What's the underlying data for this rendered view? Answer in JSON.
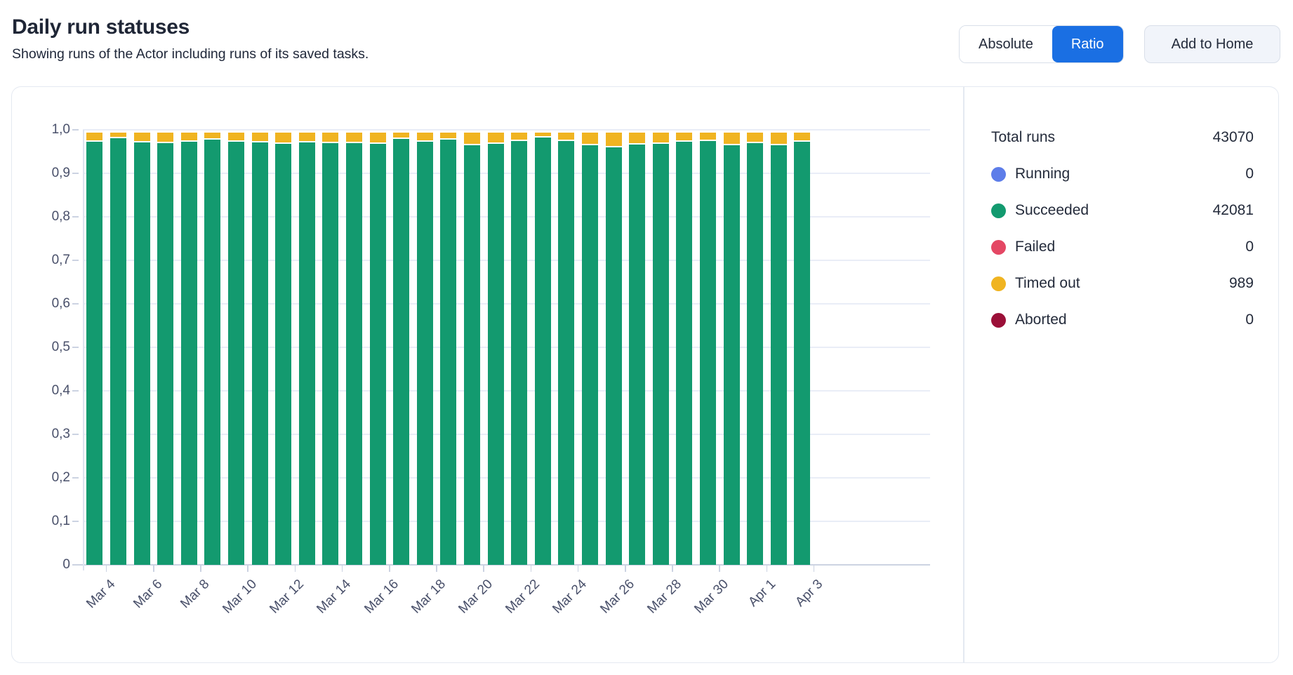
{
  "header": {
    "title": "Daily run statuses",
    "subtitle": "Showing runs of the Actor including runs of its saved tasks.",
    "controls": {
      "absolute_label": "Absolute",
      "ratio_label": "Ratio",
      "active_view": "Ratio",
      "add_to_home_label": "Add to Home",
      "active_color": "#1a6fe3"
    }
  },
  "legend": {
    "total_label": "Total runs",
    "total_value": "43070",
    "items": [
      {
        "label": "Running",
        "value": "0",
        "color": "#5d7de9"
      },
      {
        "label": "Succeeded",
        "value": "42081",
        "color": "#139a6f"
      },
      {
        "label": "Failed",
        "value": "0",
        "color": "#e44764"
      },
      {
        "label": "Timed out",
        "value": "989",
        "color": "#f0b421"
      },
      {
        "label": "Aborted",
        "value": "0",
        "color": "#9b1038"
      }
    ]
  },
  "chart_data": {
    "type": "bar",
    "stacked": true,
    "title": "Daily run statuses",
    "xlabel": "",
    "ylabel": "",
    "ylim": [
      0,
      1
    ],
    "grid": true,
    "legend_position": "right",
    "y_tick_labels": [
      "0",
      "0,1",
      "0,2",
      "0,3",
      "0,4",
      "0,5",
      "0,6",
      "0,7",
      "0,8",
      "0,9",
      "1,0"
    ],
    "x": [
      "Mar 4",
      "Mar 5",
      "Mar 6",
      "Mar 7",
      "Mar 8",
      "Mar 9",
      "Mar 10",
      "Mar 11",
      "Mar 12",
      "Mar 13",
      "Mar 14",
      "Mar 15",
      "Mar 16",
      "Mar 17",
      "Mar 18",
      "Mar 19",
      "Mar 20",
      "Mar 21",
      "Mar 22",
      "Mar 23",
      "Mar 24",
      "Mar 25",
      "Mar 26",
      "Mar 27",
      "Mar 28",
      "Mar 29",
      "Mar 30",
      "Mar 31",
      "Apr 1",
      "Apr 2",
      "Apr 3"
    ],
    "x_tick_every": 2,
    "x_tick_labels": [
      "Mar 4",
      "Mar 6",
      "Mar 8",
      "Mar 10",
      "Mar 12",
      "Mar 14",
      "Mar 16",
      "Mar 18",
      "Mar 20",
      "Mar 22",
      "Mar 24",
      "Mar 26",
      "Mar 28",
      "Mar 30",
      "Apr 1",
      "Apr 3"
    ],
    "series": [
      {
        "name": "Succeeded",
        "color": "#139a6f",
        "values": [
          0.972,
          0.98,
          0.971,
          0.969,
          0.973,
          0.977,
          0.973,
          0.971,
          0.968,
          0.971,
          0.969,
          0.97,
          0.968,
          0.979,
          0.973,
          0.978,
          0.965,
          0.967,
          0.975,
          0.982,
          0.974,
          0.965,
          0.96,
          0.966,
          0.968,
          0.973,
          0.975,
          0.964,
          0.97,
          0.964,
          0.972
        ]
      },
      {
        "name": "Timed out",
        "color": "#f0b421",
        "values": [
          0.028,
          0.02,
          0.029,
          0.031,
          0.027,
          0.023,
          0.027,
          0.029,
          0.032,
          0.029,
          0.031,
          0.03,
          0.032,
          0.021,
          0.027,
          0.022,
          0.035,
          0.033,
          0.025,
          0.018,
          0.026,
          0.035,
          0.04,
          0.034,
          0.032,
          0.027,
          0.025,
          0.036,
          0.03,
          0.036,
          0.028
        ]
      }
    ]
  }
}
